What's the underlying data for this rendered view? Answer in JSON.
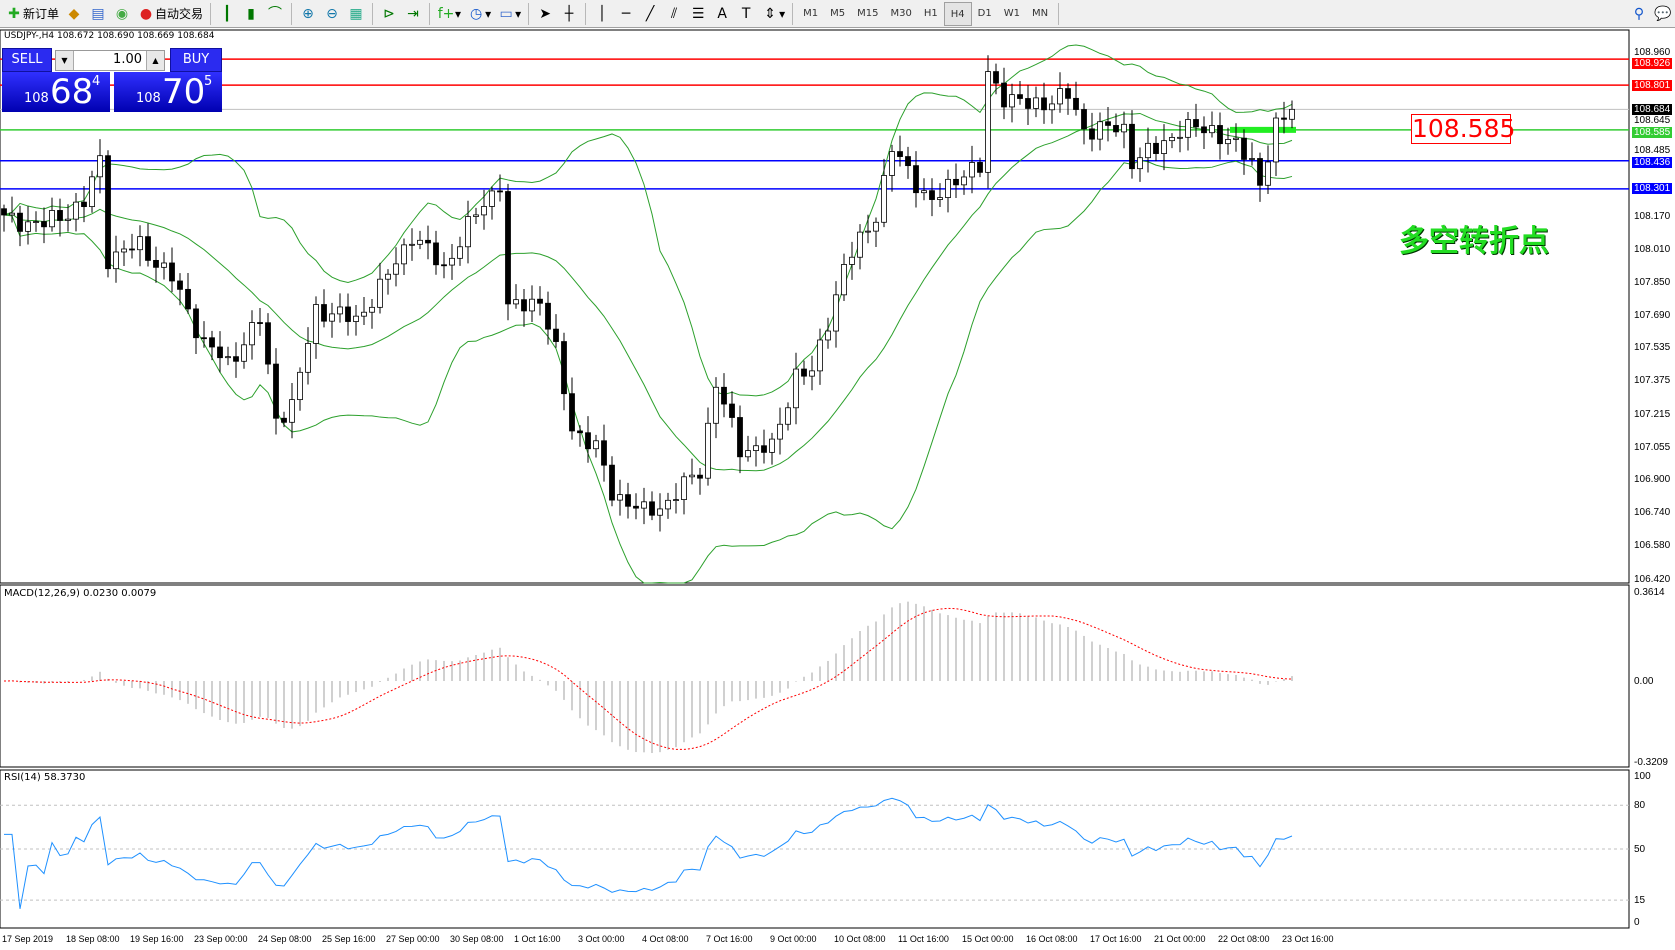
{
  "toolbar": {
    "new_order": "新订单",
    "auto_trading": "自动交易",
    "timeframes": [
      "M1",
      "M5",
      "M15",
      "M30",
      "H1",
      "H4",
      "D1",
      "W1",
      "MN"
    ],
    "active_timeframe": "H4"
  },
  "chart": {
    "header": "USDJPY-,H4  108.672 108.690 108.669 108.684",
    "trade_panel": {
      "sell": "SELL",
      "buy": "BUY",
      "lot": "1.00",
      "bid_prefix": "108",
      "bid_main": "68",
      "bid_sup": "4",
      "ask_prefix": "108",
      "ask_main": "70",
      "ask_sup": "5"
    },
    "annotation_price": "108.585",
    "annotation_text": "多空转折点",
    "price_ticks": [
      "108.960",
      "108.645",
      "108.485",
      "108.170",
      "108.010",
      "107.850",
      "107.690",
      "107.535",
      "107.375",
      "107.215",
      "107.055",
      "106.900",
      "106.740",
      "106.580",
      "106.420"
    ],
    "levels": [
      {
        "price": "108.926",
        "color": "#ff0000"
      },
      {
        "price": "108.801",
        "color": "#ff0000"
      },
      {
        "price": "108.684",
        "color": "#000000",
        "line": "#c0c0c0"
      },
      {
        "price": "108.585",
        "color": "#33cc33"
      },
      {
        "price": "108.436",
        "color": "#0000ff"
      },
      {
        "price": "108.301",
        "color": "#0000ff"
      }
    ],
    "price_path": [
      [
        0,
        108.155
      ],
      [
        5,
        108.13
      ],
      [
        10,
        108.23
      ],
      [
        12,
        108.44
      ],
      [
        13,
        107.97
      ],
      [
        17,
        108.03
      ],
      [
        21,
        107.87
      ],
      [
        25,
        107.56
      ],
      [
        28,
        107.46
      ],
      [
        32,
        107.67
      ],
      [
        34,
        107.2
      ],
      [
        36,
        107.25
      ],
      [
        39,
        107.72
      ],
      [
        44,
        107.67
      ],
      [
        47,
        107.82
      ],
      [
        51,
        108.08
      ],
      [
        55,
        107.92
      ],
      [
        59,
        108.18
      ],
      [
        62,
        108.33
      ],
      [
        63,
        107.72
      ],
      [
        67,
        107.77
      ],
      [
        69,
        107.51
      ],
      [
        71,
        107.15
      ],
      [
        74,
        107.05
      ],
      [
        76,
        106.84
      ],
      [
        80,
        106.74
      ],
      [
        83,
        106.79
      ],
      [
        87,
        106.95
      ],
      [
        89,
        107.36
      ],
      [
        92,
        107.05
      ],
      [
        96,
        107.05
      ],
      [
        99,
        107.41
      ],
      [
        101,
        107.41
      ],
      [
        105,
        107.92
      ],
      [
        109,
        108.18
      ],
      [
        111,
        108.49
      ],
      [
        113,
        108.39
      ],
      [
        116,
        108.23
      ],
      [
        120,
        108.39
      ],
      [
        122,
        108.39
      ],
      [
        123,
        108.85
      ],
      [
        125,
        108.75
      ],
      [
        128,
        108.7
      ],
      [
        133,
        108.75
      ],
      [
        135,
        108.59
      ],
      [
        140,
        108.59
      ],
      [
        141,
        108.44
      ],
      [
        144,
        108.49
      ],
      [
        147,
        108.59
      ],
      [
        151,
        108.59
      ],
      [
        156,
        108.44
      ],
      [
        157,
        108.33
      ],
      [
        159,
        108.59
      ],
      [
        161,
        108.684
      ]
    ],
    "bb_color": "#2ca02c"
  },
  "macd": {
    "label": "MACD(12,26,9) 0.0230 0.0079",
    "ticks": [
      "0.3614",
      "0.00",
      "-0.3209"
    ],
    "hist_color": "#c0c0c0",
    "signal_color": "#ff0000"
  },
  "rsi": {
    "label": "RSI(14) 58.3730",
    "ticks": [
      "100",
      "80",
      "50",
      "15",
      "0"
    ],
    "color": "#1e90ff"
  },
  "time_axis": [
    "17 Sep 2019",
    "18 Sep 08:00",
    "19 Sep 16:00",
    "23 Sep 00:00",
    "24 Sep 08:00",
    "25 Sep 16:00",
    "27 Sep 00:00",
    "30 Sep 08:00",
    "1 Oct 16:00",
    "3 Oct 00:00",
    "4 Oct 08:00",
    "7 Oct 16:00",
    "9 Oct 00:00",
    "10 Oct 08:00",
    "11 Oct 16:00",
    "15 Oct 00:00",
    "16 Oct 08:00",
    "17 Oct 16:00",
    "21 Oct 00:00",
    "22 Oct 08:00",
    "23 Oct 16:00"
  ]
}
